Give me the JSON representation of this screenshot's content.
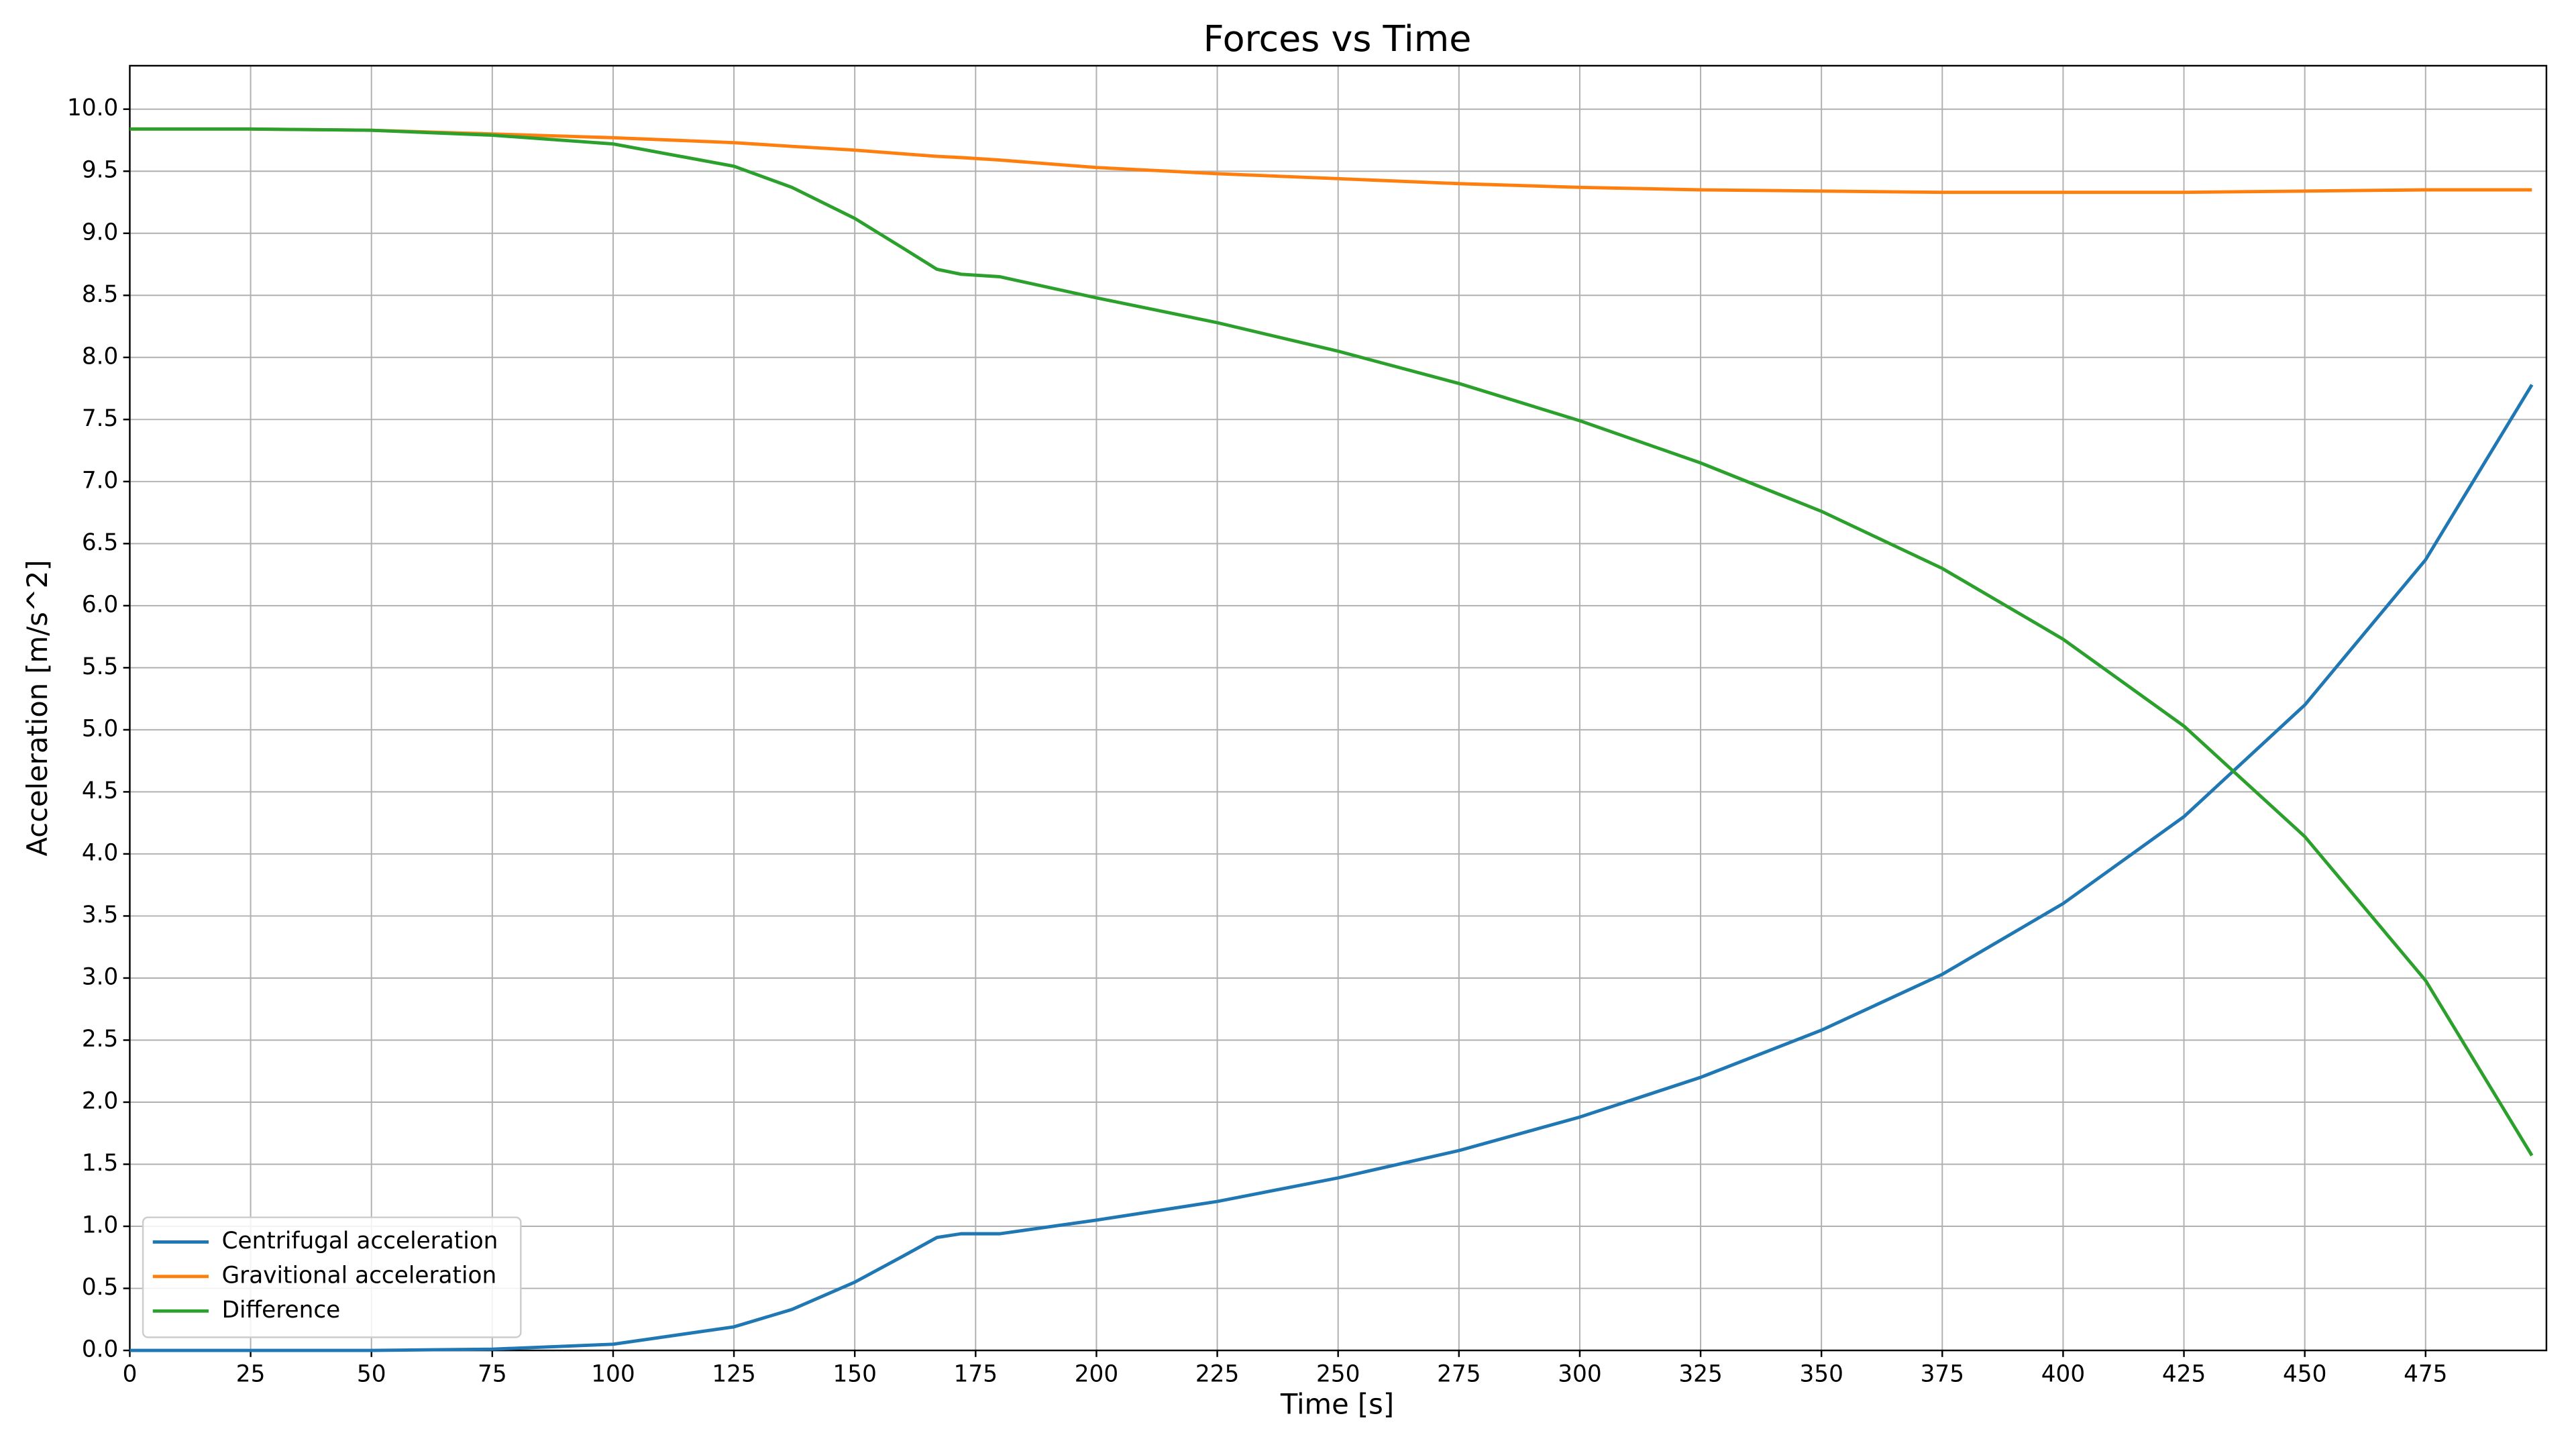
{
  "chart_data": {
    "type": "line",
    "title": "Forces vs Time",
    "x_label": "Time [s]",
    "y_label": "Acceleration [m/s^2]",
    "x": [
      0,
      25,
      50,
      75,
      100,
      125,
      137,
      150,
      160,
      167,
      172,
      180,
      200,
      225,
      250,
      275,
      300,
      325,
      350,
      375,
      400,
      425,
      450,
      475,
      497
    ],
    "series": [
      {
        "name": "Centrifugal acceleration",
        "color": "#1f77b4",
        "values": [
          0,
          0,
          0,
          0.01,
          0.05,
          0.19,
          0.33,
          0.55,
          0.76,
          0.91,
          0.94,
          0.94,
          1.05,
          1.2,
          1.39,
          1.61,
          1.88,
          2.2,
          2.58,
          3.03,
          3.6,
          4.3,
          5.2,
          6.37,
          7.78
        ]
      },
      {
        "name": "Gravitional acceleration",
        "color": "#ff7f0e",
        "values": [
          9.84,
          9.84,
          9.83,
          9.8,
          9.77,
          9.73,
          9.7,
          9.67,
          9.64,
          9.62,
          9.61,
          9.59,
          9.53,
          9.48,
          9.44,
          9.4,
          9.37,
          9.35,
          9.34,
          9.33,
          9.33,
          9.33,
          9.34,
          9.35,
          9.35
        ]
      },
      {
        "name": "Difference",
        "color": "#2ca02c",
        "values": [
          9.84,
          9.84,
          9.83,
          9.79,
          9.72,
          9.54,
          9.37,
          9.12,
          8.88,
          8.71,
          8.67,
          8.65,
          8.48,
          8.28,
          8.05,
          7.79,
          7.49,
          7.15,
          6.76,
          6.3,
          5.73,
          5.03,
          4.14,
          2.98,
          1.57
        ]
      }
    ],
    "xlim": [
      0,
      500
    ],
    "ylim": [
      0,
      10.35
    ],
    "xticks": [
      0,
      25,
      50,
      75,
      100,
      125,
      150,
      175,
      200,
      225,
      250,
      275,
      300,
      325,
      350,
      375,
      400,
      425,
      450,
      475
    ],
    "yticks": [
      {
        "value": 0,
        "label": "0.0"
      },
      0.5,
      {
        "value": 1,
        "label": "1.0"
      },
      1.5,
      {
        "value": 2,
        "label": "2.0"
      },
      2.5,
      {
        "value": 3,
        "label": "3.0"
      },
      3.5,
      {
        "value": 4,
        "label": "4.0"
      },
      4.5,
      {
        "value": 5,
        "label": "5.0"
      },
      5.5,
      {
        "value": 6,
        "label": "6.0"
      },
      6.5,
      {
        "value": 7,
        "label": "7.0"
      },
      7.5,
      {
        "value": 8,
        "label": "8.0"
      },
      8.5,
      {
        "value": 9,
        "label": "9.0"
      },
      9.5,
      {
        "value": 10,
        "label": "10.0"
      }
    ],
    "grid": true,
    "legend": "lower left"
  }
}
